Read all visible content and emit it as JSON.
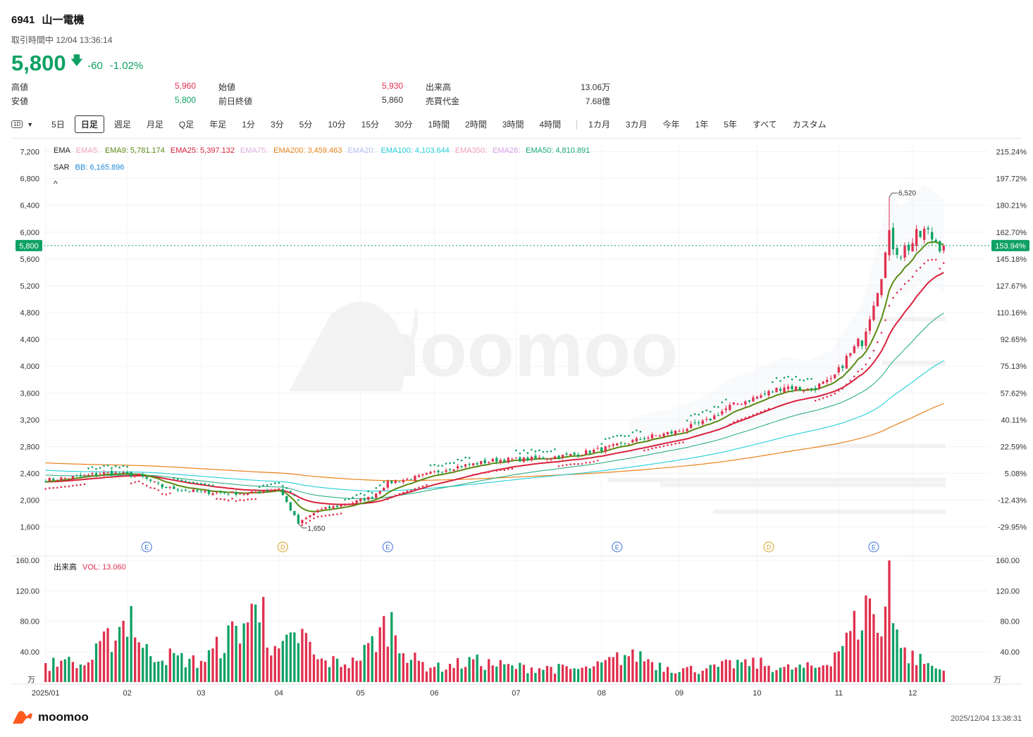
{
  "header": {
    "code": "6941",
    "name": "山一電機",
    "status": "取引時間中 12/04 13:36:14",
    "price": "5,800",
    "change": "-60",
    "change_pct": "-1.02%"
  },
  "stats": [
    {
      "label": "高値",
      "value": "5,960",
      "color": "#e0304e"
    },
    {
      "label": "安値",
      "value": "5,800",
      "color": "#0ea163"
    },
    {
      "label": "始値",
      "value": "5,930",
      "color": "#e0304e"
    },
    {
      "label": "前日終値",
      "value": "5,860",
      "color": "#333333"
    },
    {
      "label": "出来高",
      "value": "13.06万",
      "color": "#333333"
    },
    {
      "label": "売買代金",
      "value": "7.68億",
      "color": "#333333"
    }
  ],
  "toolbar": {
    "interval_icon": "1D",
    "tabs": [
      "5日",
      "日足",
      "週足",
      "月足",
      "Q足",
      "年足",
      "1分",
      "3分",
      "5分",
      "10分",
      "15分",
      "30分",
      "1時間",
      "2時間",
      "3時間",
      "4時間"
    ],
    "range_tabs": [
      "1カ月",
      "3カ月",
      "今年",
      "1年",
      "5年",
      "すべて",
      "カスタム"
    ],
    "active": "日足"
  },
  "legend": {
    "row1": [
      {
        "text": "EMA",
        "color": "#222222"
      },
      {
        "text": "EMA5:",
        "color": "#f0a0c0"
      },
      {
        "text": "EMA9: 5,781.174",
        "color": "#5a8a12"
      },
      {
        "text": "EMA25: 5,397.132",
        "color": "#d8223c"
      },
      {
        "text": "EMA75:",
        "color": "#e0b0e0"
      },
      {
        "text": "EMA200: 3,459.463",
        "color": "#e8821a"
      },
      {
        "text": "EMA20:",
        "color": "#b8c0f0"
      },
      {
        "text": "EMA100: 4,103.644",
        "color": "#22cfd8"
      },
      {
        "text": "EMA350:",
        "color": "#f0a0b8"
      },
      {
        "text": "EMA26:",
        "color": "#d8a0e8"
      },
      {
        "text": "EMA50: 4,810.891",
        "color": "#1aa877"
      }
    ],
    "row2": [
      {
        "text": "SAR",
        "color": "#222222"
      },
      {
        "text": "BB: 6,165.896",
        "color": "#1e88d8"
      }
    ],
    "collapse": "^"
  },
  "watermark": "moomoo",
  "volume_legend": {
    "label": "出来高",
    "value": "VOL: 13.060"
  },
  "chart_data": {
    "type": "candlestick",
    "y_ticks": [
      "7,200",
      "6,800",
      "6,400",
      "6,000",
      "5,600",
      "5,200",
      "4,800",
      "4,400",
      "4,000",
      "3,600",
      "3,200",
      "2,800",
      "2,400",
      "2,000",
      "1,600"
    ],
    "y_tick_values": [
      7200,
      6800,
      6400,
      6000,
      5600,
      5200,
      4800,
      4400,
      4000,
      3600,
      3200,
      2800,
      2400,
      2000,
      1600
    ],
    "pct_ticks": [
      "215.24%",
      "197.72%",
      "180.21%",
      "162.70%",
      "145.18%",
      "127.67%",
      "110.16%",
      "92.65%",
      "75.13%",
      "57.62%",
      "40.11%",
      "22.59%",
      "5.08%",
      "-12.43%",
      "-29.95%"
    ],
    "ylim": [
      1450,
      7300
    ],
    "current_price": 5800,
    "current_price_label": "5,800",
    "current_pct_label": "153.94%",
    "high_label": "6,520",
    "low_label": "1,650",
    "high_value": 6520,
    "low_value": 1650,
    "x_labels": [
      "2025/01",
      "02",
      "03",
      "04",
      "05",
      "06",
      "07",
      "08",
      "09",
      "10",
      "11",
      "12"
    ],
    "x_label_index": [
      0,
      21,
      40,
      60,
      81,
      100,
      121,
      143,
      163,
      183,
      204,
      223
    ],
    "n_days": 232,
    "events": [
      {
        "index": 26,
        "label": "E"
      },
      {
        "index": 61,
        "label": "D"
      },
      {
        "index": 88,
        "label": "E"
      },
      {
        "index": 147,
        "label": "E"
      },
      {
        "index": 186,
        "label": "D"
      },
      {
        "index": 213,
        "label": "E"
      }
    ],
    "close_anchors": [
      [
        0,
        2300
      ],
      [
        8,
        2350
      ],
      [
        16,
        2410
      ],
      [
        24,
        2370
      ],
      [
        30,
        2200
      ],
      [
        40,
        2120
      ],
      [
        52,
        2100
      ],
      [
        60,
        2180
      ],
      [
        65,
        1650
      ],
      [
        70,
        1850
      ],
      [
        78,
        1950
      ],
      [
        84,
        2050
      ],
      [
        88,
        2260
      ],
      [
        96,
        2350
      ],
      [
        104,
        2480
      ],
      [
        116,
        2600
      ],
      [
        126,
        2620
      ],
      [
        136,
        2680
      ],
      [
        146,
        2800
      ],
      [
        154,
        2930
      ],
      [
        162,
        3020
      ],
      [
        170,
        3180
      ],
      [
        176,
        3400
      ],
      [
        184,
        3560
      ],
      [
        190,
        3700
      ],
      [
        196,
        3650
      ],
      [
        202,
        3780
      ],
      [
        206,
        4100
      ],
      [
        210,
        4400
      ],
      [
        214,
        5200
      ],
      [
        217,
        5900
      ],
      [
        220,
        5700
      ],
      [
        226,
        6000
      ],
      [
        231,
        5800
      ]
    ],
    "volume_ticks": [
      "160.00",
      "120.00",
      "80.00",
      "40.00"
    ],
    "volume_tick_values": [
      160,
      120,
      80,
      40
    ],
    "volume_unit": "万",
    "volume_ylim": [
      0,
      162
    ],
    "volume_anchors": [
      [
        0,
        25
      ],
      [
        5,
        30
      ],
      [
        10,
        22
      ],
      [
        22,
        100
      ],
      [
        25,
        45
      ],
      [
        40,
        28
      ],
      [
        56,
        112
      ],
      [
        58,
        35
      ],
      [
        66,
        70
      ],
      [
        70,
        30
      ],
      [
        80,
        28
      ],
      [
        89,
        92
      ],
      [
        92,
        38
      ],
      [
        100,
        20
      ],
      [
        110,
        30
      ],
      [
        120,
        22
      ],
      [
        130,
        20
      ],
      [
        140,
        18
      ],
      [
        151,
        43
      ],
      [
        160,
        20
      ],
      [
        170,
        18
      ],
      [
        180,
        30
      ],
      [
        190,
        20
      ],
      [
        200,
        22
      ],
      [
        206,
        65
      ],
      [
        212,
        110
      ],
      [
        215,
        60
      ],
      [
        217,
        160
      ],
      [
        220,
        45
      ],
      [
        231,
        15
      ]
    ],
    "ema_levels": {
      "EMA9": 5781.174,
      "EMA25": 5397.132,
      "EMA50": 4810.891,
      "EMA100": 4103.644,
      "EMA200": 3459.463
    }
  },
  "footer": {
    "logo": "moomoo",
    "timestamp": "2025/12/04 13:38:31"
  }
}
